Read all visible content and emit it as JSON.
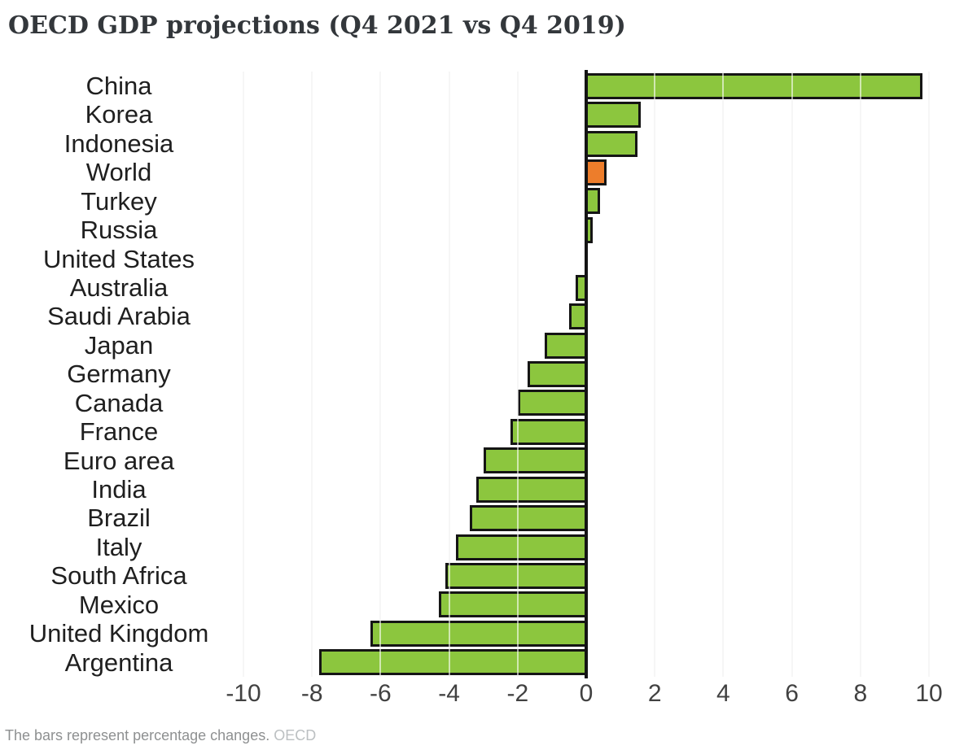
{
  "title": "OECD GDP projections (Q4 2021 vs Q4 2019)",
  "footer": {
    "note": "The bars represent percentage changes.",
    "source": "OECD"
  },
  "chart_data": {
    "type": "bar",
    "orientation": "horizontal",
    "title": "OECD GDP projections (Q4 2021 vs Q4 2019)",
    "xlabel": "",
    "ylabel": "",
    "unit": "percentage change",
    "categories": [
      "China",
      "Korea",
      "Indonesia",
      "World",
      "Turkey",
      "Russia",
      "United States",
      "Australia",
      "Saudi Arabia",
      "Japan",
      "Germany",
      "Canada",
      "France",
      "Euro area",
      "India",
      "Brazil",
      "Italy",
      "South Africa",
      "Mexico",
      "United Kingdom",
      "Argentina"
    ],
    "values": [
      9.8,
      1.6,
      1.5,
      0.6,
      0.4,
      0.2,
      0.0,
      -0.3,
      -0.5,
      -1.2,
      -1.7,
      -2.0,
      -2.2,
      -3.0,
      -3.2,
      -3.4,
      -3.8,
      -4.1,
      -4.3,
      -6.3,
      -7.8
    ],
    "highlight_category": "World",
    "xlim": [
      -10,
      10
    ],
    "xticks": [
      -10,
      -8,
      -6,
      -4,
      -2,
      0,
      2,
      4,
      6,
      8,
      10
    ],
    "grid": true,
    "legend": false,
    "colors": {
      "bar_fill": "#8cc63e",
      "highlight_fill": "#ed7d2b",
      "bar_border": "#151515",
      "gridline": "#e9e9e9",
      "axis_line": "#141414"
    }
  }
}
